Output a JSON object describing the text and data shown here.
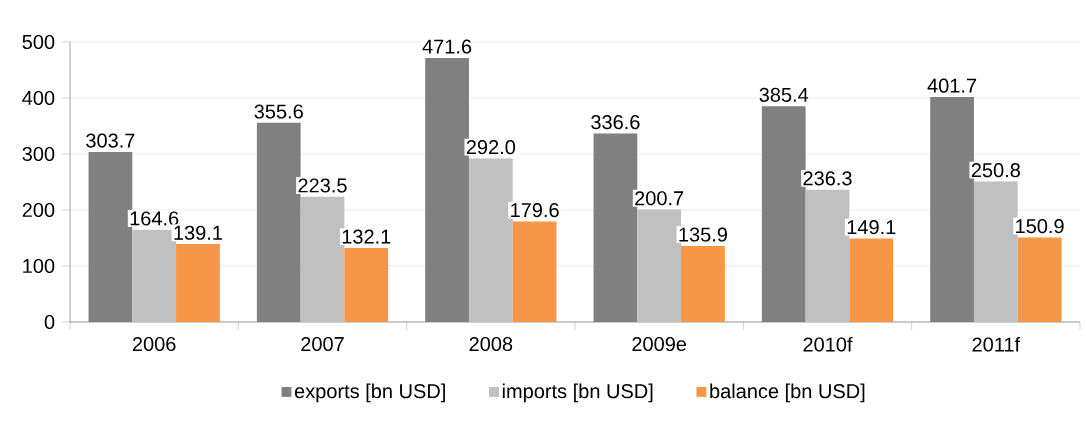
{
  "chart_data": {
    "type": "bar",
    "categories": [
      "2006",
      "2007",
      "2008",
      "2009e",
      "2010f",
      "2011f"
    ],
    "series": [
      {
        "name": "exports [bn USD]",
        "color": "#808080",
        "values": [
          303.7,
          355.6,
          471.6,
          336.6,
          385.4,
          401.7
        ],
        "value_labels": [
          "303.7",
          "355.6",
          "471.6",
          "336.6",
          "385.4",
          "401.7"
        ]
      },
      {
        "name": "imports [bn USD]",
        "color": "#c0c0c0",
        "values": [
          164.6,
          223.5,
          292.0,
          200.7,
          236.3,
          250.8
        ],
        "value_labels": [
          "164.6",
          "223.5",
          "292.0",
          "200.7",
          "236.3",
          "250.8"
        ]
      },
      {
        "name": "balance [bn USD]",
        "color": "#f79646",
        "values": [
          139.1,
          132.1,
          179.6,
          135.9,
          149.1,
          150.9
        ],
        "value_labels": [
          "139.1",
          "132.1",
          "179.6",
          "135.9",
          "149.1",
          "150.9"
        ]
      }
    ],
    "ylim": [
      0,
      500
    ],
    "yticks": [
      0,
      100,
      200,
      300,
      400,
      500
    ],
    "grid": "y",
    "legend": "bottom"
  }
}
